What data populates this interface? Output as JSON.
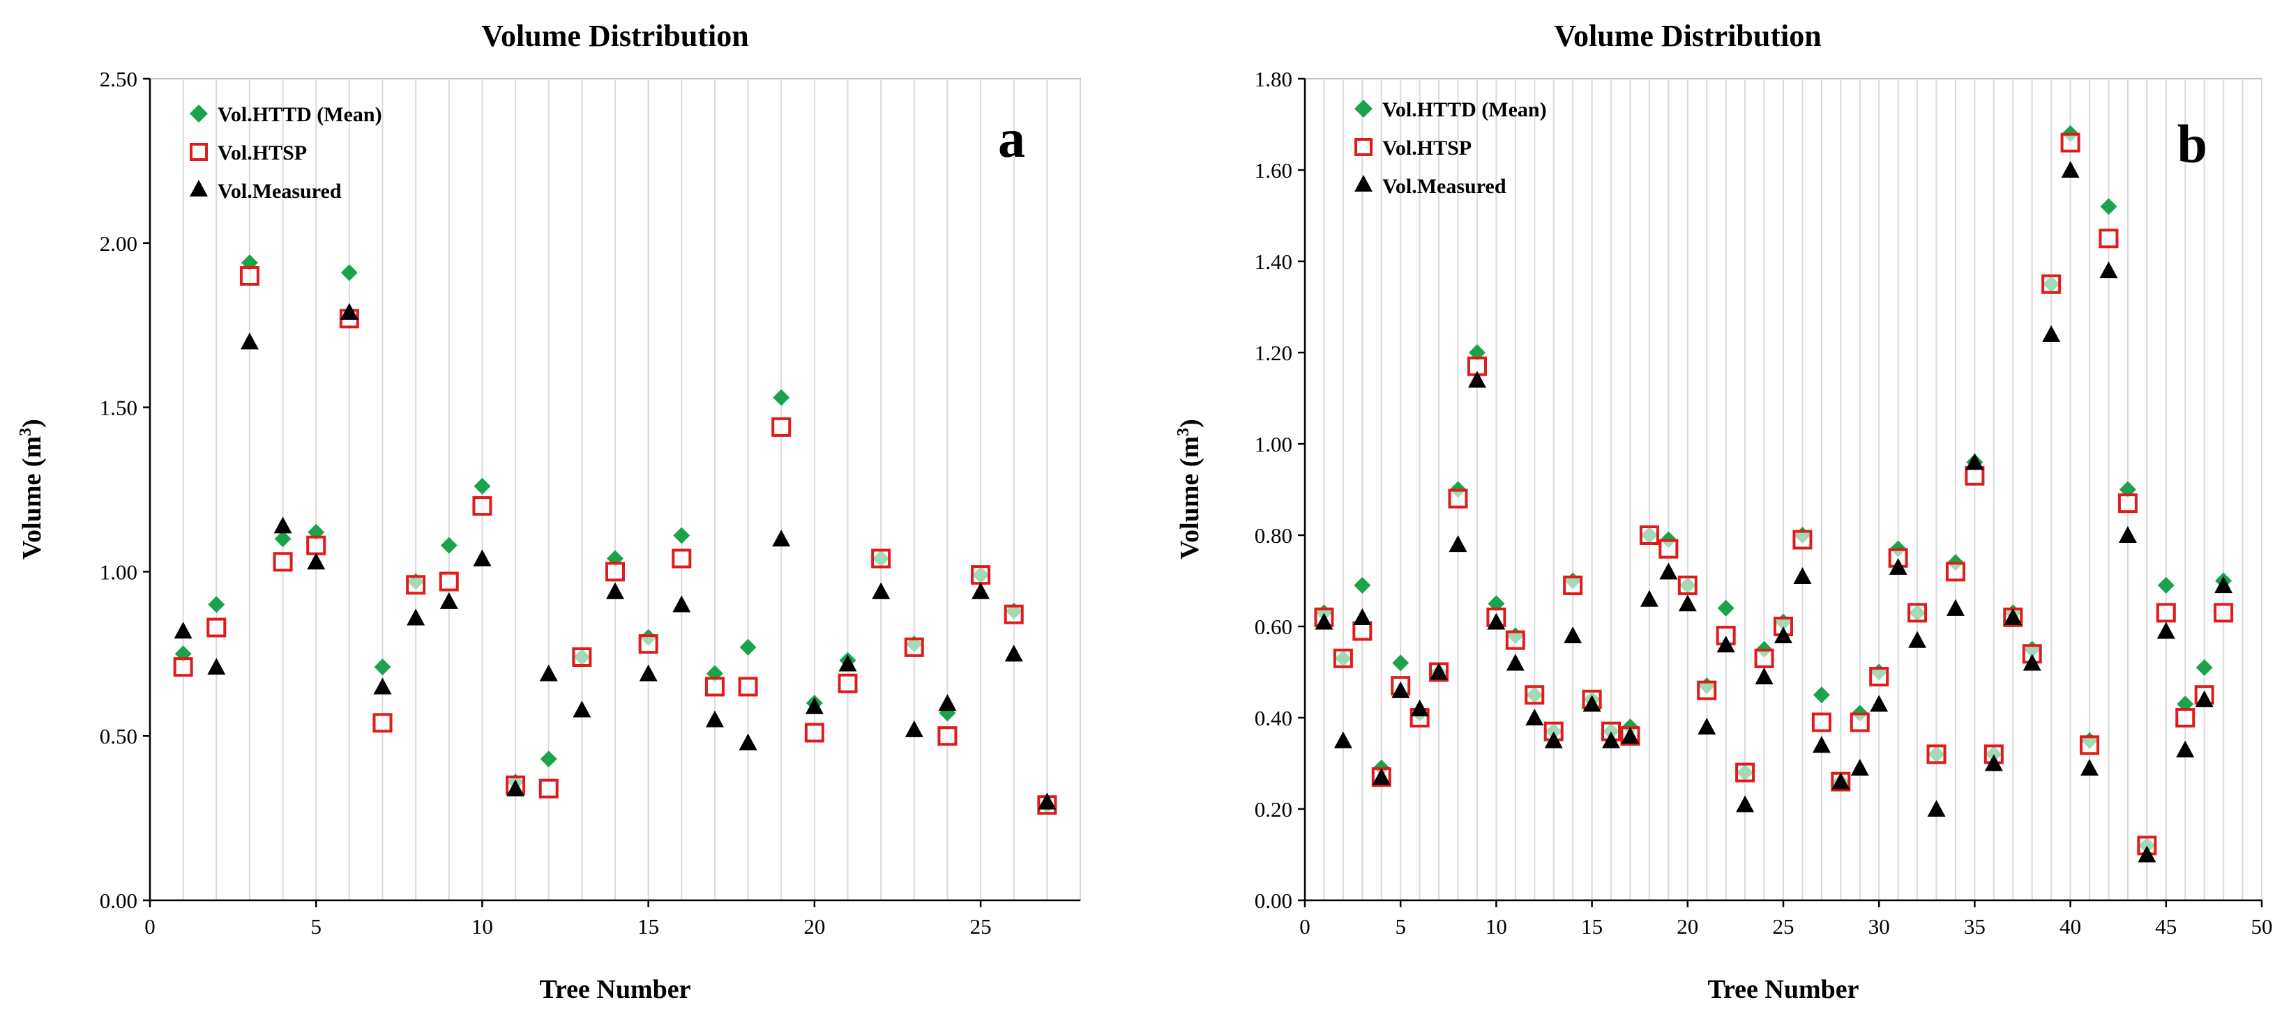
{
  "colors": {
    "httd": "#1aa34a",
    "htsp": "#e01b1b",
    "measured": "#000000",
    "grid": "#d9d9d9"
  },
  "chart_data": [
    {
      "type": "scatter",
      "panel": "a",
      "title": "Volume Distribution",
      "xlabel": "Tree Number",
      "ylabel_main": "Volume (m",
      "ylabel_sup": "3",
      "ylabel_close": ")",
      "xlim": [
        0,
        28
      ],
      "ylim": [
        0,
        2.5
      ],
      "xticks": [
        0,
        5,
        10,
        15,
        20,
        25
      ],
      "xtick_labels": [
        "0",
        "5",
        "10",
        "15",
        "20",
        "25"
      ],
      "yticks": [
        0,
        0.5,
        1.0,
        1.5,
        2.0,
        2.5
      ],
      "ytick_labels": [
        "0.00",
        "0.50",
        "1.00",
        "1.50",
        "2.00",
        "2.50"
      ],
      "grid": "vertical",
      "legend_position": "top-left",
      "x": [
        1,
        2,
        3,
        4,
        5,
        6,
        7,
        8,
        9,
        10,
        11,
        12,
        13,
        14,
        15,
        16,
        17,
        18,
        19,
        20,
        21,
        22,
        23,
        24,
        25,
        26,
        27
      ],
      "series": [
        {
          "name": "Vol.HTTD (Mean)",
          "marker": "diamond",
          "values": [
            0.75,
            0.9,
            1.94,
            1.1,
            1.12,
            1.91,
            0.71,
            0.97,
            1.08,
            1.26,
            0.36,
            0.43,
            0.74,
            1.04,
            0.8,
            1.11,
            0.69,
            0.77,
            1.53,
            0.6,
            0.73,
            1.04,
            0.78,
            0.57,
            0.99,
            0.88,
            0.29
          ]
        },
        {
          "name": "Vol.HTSP",
          "marker": "square",
          "values": [
            0.71,
            0.83,
            1.9,
            1.03,
            1.08,
            1.77,
            0.54,
            0.96,
            0.97,
            1.2,
            0.35,
            0.34,
            0.74,
            1.0,
            0.78,
            1.04,
            0.65,
            0.65,
            1.44,
            0.51,
            0.66,
            1.04,
            0.77,
            0.5,
            0.99,
            0.87,
            0.29
          ]
        },
        {
          "name": "Vol.Measured",
          "marker": "triangle",
          "values": [
            0.82,
            0.71,
            1.7,
            1.14,
            1.03,
            1.79,
            0.65,
            0.86,
            0.91,
            1.04,
            0.34,
            0.69,
            0.58,
            0.94,
            0.69,
            0.9,
            0.55,
            0.48,
            1.1,
            0.59,
            0.72,
            0.94,
            0.52,
            0.6,
            0.94,
            0.75,
            0.3
          ]
        }
      ]
    },
    {
      "type": "scatter",
      "panel": "b",
      "title": "Volume Distribution",
      "xlabel": "Tree Number",
      "ylabel_main": "Volume (m",
      "ylabel_sup": "3",
      "ylabel_close": ")",
      "xlim": [
        0,
        50
      ],
      "ylim": [
        0,
        1.8
      ],
      "xticks": [
        0,
        5,
        10,
        15,
        20,
        25,
        30,
        35,
        40,
        45,
        50
      ],
      "xtick_labels": [
        "0",
        "5",
        "10",
        "15",
        "20",
        "25",
        "30",
        "35",
        "40",
        "45",
        "50"
      ],
      "yticks": [
        0,
        0.2,
        0.4,
        0.6,
        0.8,
        1.0,
        1.2,
        1.4,
        1.6,
        1.8
      ],
      "ytick_labels": [
        "0.00",
        "0.20",
        "0.40",
        "0.60",
        "0.80",
        "1.00",
        "1.20",
        "1.40",
        "1.60",
        "1.80"
      ],
      "grid": "vertical",
      "legend_position": "top-left",
      "x": [
        1,
        2,
        3,
        4,
        5,
        6,
        7,
        8,
        9,
        10,
        11,
        12,
        13,
        14,
        15,
        16,
        17,
        18,
        19,
        20,
        21,
        22,
        23,
        24,
        25,
        26,
        27,
        28,
        29,
        30,
        31,
        32,
        33,
        34,
        35,
        36,
        37,
        38,
        39,
        40,
        41,
        42,
        43,
        44,
        45,
        46,
        47,
        48
      ],
      "series": [
        {
          "name": "Vol.HTTD (Mean)",
          "marker": "diamond",
          "values": [
            0.63,
            0.53,
            0.69,
            0.29,
            0.52,
            0.41,
            0.5,
            0.9,
            1.2,
            0.65,
            0.58,
            0.45,
            0.37,
            0.7,
            0.44,
            0.37,
            0.38,
            0.8,
            0.79,
            0.69,
            0.47,
            0.64,
            0.28,
            0.55,
            0.61,
            0.8,
            0.45,
            0.26,
            0.41,
            0.5,
            0.77,
            0.63,
            0.32,
            0.74,
            0.96,
            0.32,
            0.63,
            0.55,
            1.35,
            1.68,
            0.35,
            1.52,
            0.9,
            0.12,
            0.69,
            0.43,
            0.51,
            0.7
          ]
        },
        {
          "name": "Vol.HTSP",
          "marker": "square",
          "values": [
            0.62,
            0.53,
            0.59,
            0.27,
            0.47,
            0.4,
            0.5,
            0.88,
            1.17,
            0.62,
            0.57,
            0.45,
            0.37,
            0.69,
            0.44,
            0.37,
            0.36,
            0.8,
            0.77,
            0.69,
            0.46,
            0.58,
            0.28,
            0.53,
            0.6,
            0.79,
            0.39,
            0.26,
            0.39,
            0.49,
            0.75,
            0.63,
            0.32,
            0.72,
            0.93,
            0.32,
            0.62,
            0.54,
            1.35,
            1.66,
            0.34,
            1.45,
            0.87,
            0.12,
            0.63,
            0.4,
            0.45,
            0.63
          ]
        },
        {
          "name": "Vol.Measured",
          "marker": "triangle",
          "values": [
            0.61,
            0.35,
            0.62,
            0.27,
            0.46,
            0.42,
            0.5,
            0.78,
            1.14,
            0.61,
            0.52,
            0.4,
            0.35,
            0.58,
            0.43,
            0.35,
            0.36,
            0.66,
            0.72,
            0.65,
            0.38,
            0.56,
            0.21,
            0.49,
            0.58,
            0.71,
            0.34,
            0.26,
            0.29,
            0.43,
            0.73,
            0.57,
            0.2,
            0.64,
            0.96,
            0.3,
            0.62,
            0.52,
            1.24,
            1.6,
            0.29,
            1.38,
            0.8,
            0.1,
            0.59,
            0.33,
            0.44,
            0.69
          ]
        }
      ]
    }
  ]
}
